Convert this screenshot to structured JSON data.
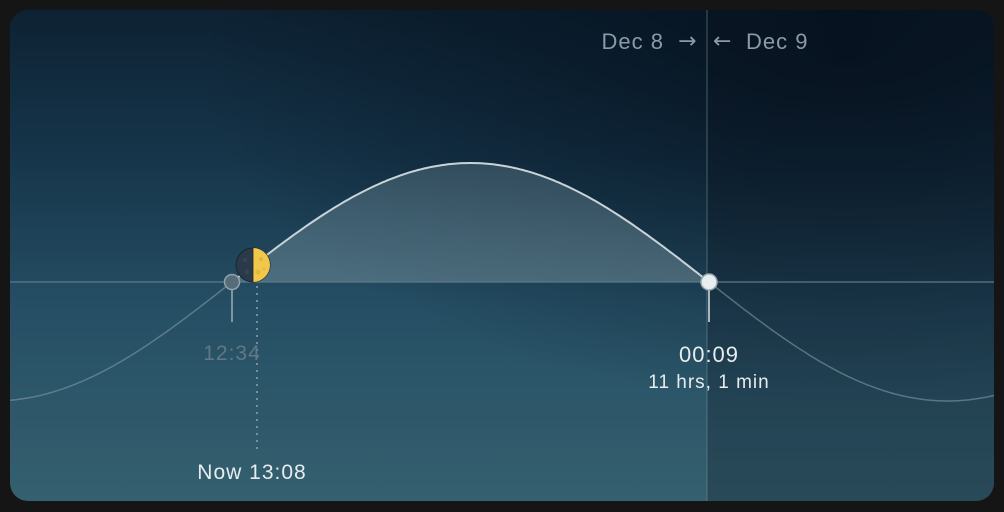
{
  "dates": {
    "current": "Dec 8",
    "next": "Dec 9",
    "arrow_right": "→",
    "arrow_left": "←"
  },
  "moonrise": {
    "time": "12:34"
  },
  "moonset": {
    "time": "00:09",
    "duration": "11 hrs, 1 min"
  },
  "now": {
    "label": "Now 13:08"
  },
  "moon": {
    "phase": "first-quarter",
    "lit_color": "#f2c84b",
    "dark_color": "#2a3a48"
  },
  "colors": {
    "curve": "#c9d3d9",
    "horizon": "#5a7a8a"
  }
}
